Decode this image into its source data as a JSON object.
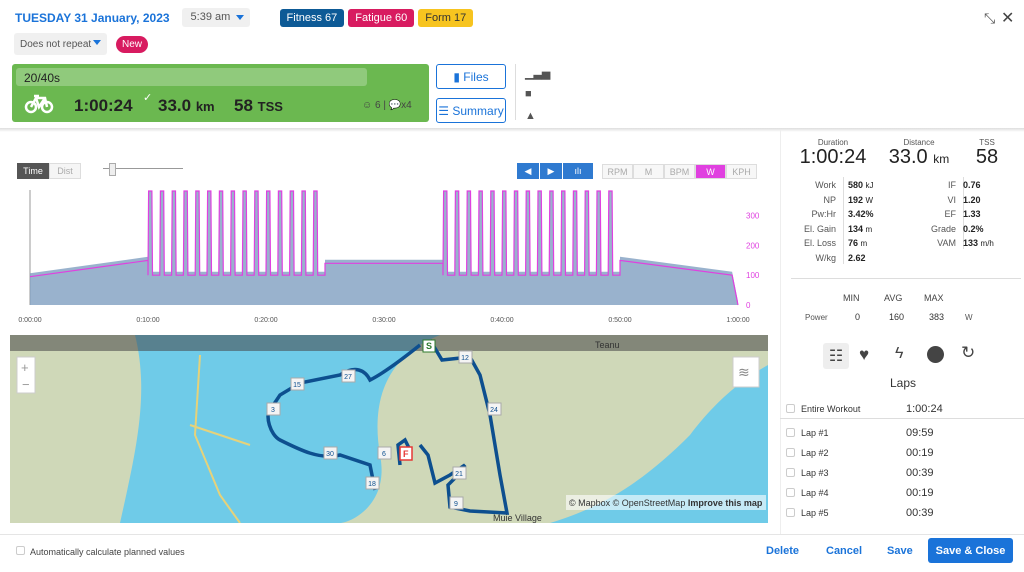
{
  "header": {
    "date": "TUESDAY 31 January, 2023",
    "time": "5:39 am",
    "repeat": "Does not repeat",
    "new_label": "New",
    "fitness": "Fitness 67",
    "fatigue": "Fatigue 60",
    "form": "Form 17"
  },
  "workout": {
    "title": "20/40s",
    "duration": "1:00:24",
    "distance": "33.0",
    "distance_unit": "km",
    "tss": "58",
    "tss_unit": "TSS",
    "feel": "6",
    "comments": "x4"
  },
  "buttons": {
    "files": "Files",
    "summary": "Summary",
    "delete": "Delete",
    "cancel": "Cancel",
    "save": "Save",
    "save_close": "Save & Close"
  },
  "colors": {
    "fitness": "#0d5a96",
    "fatigue": "#d81b60",
    "form": "#f7c41f",
    "workout_card": "#6bb850",
    "accent": "#1a73d9",
    "power": "#e040e0"
  },
  "summary": {
    "duration_label": "Duration",
    "duration": "1:00:24",
    "distance_label": "Distance",
    "distance": "33.0",
    "distance_unit": "km",
    "tss_label": "TSS",
    "tss": "58",
    "left": [
      {
        "l": "Work",
        "v": "580",
        "u": "kJ"
      },
      {
        "l": "NP",
        "v": "192",
        "u": "W"
      },
      {
        "l": "Pw:Hr",
        "v": "3.42%",
        "u": ""
      },
      {
        "l": "El. Gain",
        "v": "134",
        "u": "m"
      },
      {
        "l": "El. Loss",
        "v": "76",
        "u": "m"
      },
      {
        "l": "W/kg",
        "v": "2.62",
        "u": ""
      }
    ],
    "right": [
      {
        "l": "IF",
        "v": "0.76",
        "u": ""
      },
      {
        "l": "VI",
        "v": "1.20",
        "u": ""
      },
      {
        "l": "EF",
        "v": "1.33",
        "u": ""
      },
      {
        "l": "Grade",
        "v": "0.2%",
        "u": ""
      },
      {
        "l": "VAM",
        "v": "133",
        "u": "m/h"
      }
    ]
  },
  "minmax": {
    "headers": [
      "MIN",
      "AVG",
      "MAX"
    ],
    "row_label": "Power",
    "min": "0",
    "avg": "160",
    "max": "383",
    "unit": "W"
  },
  "laps": {
    "title": "Laps",
    "entire_label": "Entire Workout",
    "entire": "1:00:24",
    "items": [
      {
        "n": "Lap #1",
        "t": "09:59"
      },
      {
        "n": "Lap #2",
        "t": "00:19"
      },
      {
        "n": "Lap #3",
        "t": "00:39"
      },
      {
        "n": "Lap #4",
        "t": "00:19"
      },
      {
        "n": "Lap #5",
        "t": "00:39"
      }
    ]
  },
  "chart_controls": {
    "time": "Time",
    "dist": "Dist",
    "channels": [
      "RPM",
      "M",
      "BPM",
      "W",
      "KPH"
    ],
    "active_channel": "W"
  },
  "chart_data": {
    "type": "line",
    "x_ticks": [
      "0:00:00",
      "0:10:00",
      "0:20:00",
      "0:30:00",
      "0:40:00",
      "0:50:00",
      "1:00:00"
    ],
    "y_ticks": [
      "0",
      "100",
      "200",
      "300"
    ],
    "xlim_min": [
      0,
      60
    ],
    "ylim": [
      0,
      383
    ],
    "segments": [
      {
        "from": 0,
        "to": 10,
        "w0": 95,
        "w1": 150
      },
      {
        "from": 10,
        "to": 25,
        "intervals": 15,
        "on": 383,
        "off": 100
      },
      {
        "from": 25,
        "to": 35,
        "w0": 140,
        "w1": 140
      },
      {
        "from": 35,
        "to": 50,
        "intervals": 15,
        "on": 383,
        "off": 100
      },
      {
        "from": 50,
        "to": 59.5,
        "w0": 150,
        "w1": 100
      },
      {
        "from": 59.5,
        "to": 60,
        "w0": 100,
        "w1": 0
      }
    ]
  },
  "map": {
    "place_top": "Teanu",
    "place_bottom": "Muie Village",
    "attribution": "© Mapbox © OpenStreetMap",
    "improve": "Improve this map",
    "start": "S",
    "finish": "F",
    "markers": [
      "12",
      "27",
      "15",
      "3",
      "24",
      "30",
      "6",
      "21",
      "18",
      "9"
    ]
  },
  "auto_calc": "Automatically calculate planned values"
}
